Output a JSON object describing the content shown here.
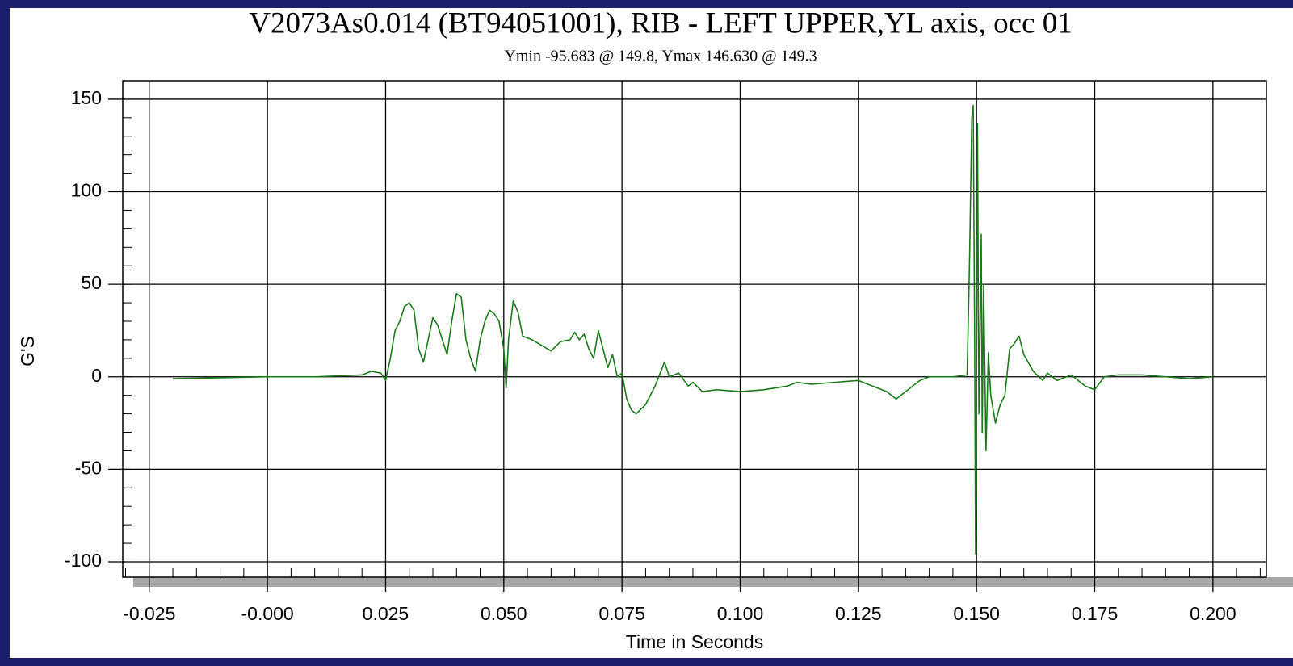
{
  "chart_data": {
    "type": "line",
    "title": "V2073As0.014 (BT94051001), RIB - LEFT UPPER,YL axis, occ 01",
    "subtitle": "Ymin -95.683 @ 149.8, Ymax 146.630 @ 149.3",
    "xlabel": "Time in Seconds",
    "ylabel": "G'S",
    "grid": true,
    "xlim": [
      -0.0306,
      0.2113
    ],
    "ylim": [
      -108.3,
      160
    ],
    "xticks": [
      {
        "value": -0.025,
        "label": "-0.025"
      },
      {
        "value": 0,
        "label": "-0.000"
      },
      0.025,
      {
        "value": 0.05,
        "label": "0.050"
      },
      0.075,
      {
        "value": 0.1,
        "label": "0.100"
      },
      0.125,
      {
        "value": 0.15,
        "label": "0.150"
      },
      0.175,
      {
        "value": 0.2,
        "label": "0.200"
      }
    ],
    "yticks": [
      150,
      100,
      50,
      0,
      -50,
      -100
    ],
    "x": [
      -0.02,
      -0.01,
      0,
      0.01,
      0.02,
      0.022,
      0.024,
      0.025,
      0.026,
      0.027,
      0.028,
      0.029,
      0.03,
      0.031,
      0.032,
      0.033,
      0.034,
      0.035,
      0.036,
      0.037,
      0.038,
      0.039,
      0.04,
      0.041,
      0.042,
      0.043,
      0.044,
      0.045,
      0.046,
      0.047,
      0.048,
      0.049,
      0.05,
      0.0505,
      0.051,
      0.052,
      0.053,
      0.054,
      0.056,
      0.058,
      0.06,
      0.062,
      0.064,
      0.065,
      0.066,
      0.067,
      0.068,
      0.069,
      0.07,
      0.071,
      0.072,
      0.073,
      0.074,
      0.075,
      0.076,
      0.077,
      0.078,
      0.08,
      0.082,
      0.084,
      0.085,
      0.087,
      0.089,
      0.09,
      0.092,
      0.095,
      0.1,
      0.105,
      0.11,
      0.112,
      0.115,
      0.12,
      0.125,
      0.128,
      0.131,
      0.133,
      0.135,
      0.138,
      0.14,
      0.145,
      0.148,
      0.1485,
      0.149,
      0.1493,
      0.1496,
      0.1498,
      0.15,
      0.1502,
      0.1505,
      0.151,
      0.1512,
      0.1515,
      0.152,
      0.1525,
      0.153,
      0.154,
      0.155,
      0.156,
      0.157,
      0.158,
      0.159,
      0.16,
      0.162,
      0.164,
      0.165,
      0.167,
      0.17,
      0.173,
      0.175,
      0.177,
      0.18,
      0.185,
      0.19,
      0.195,
      0.2
    ],
    "series": [
      {
        "name": "RIB - LEFT UPPER",
        "color": "#1a7a1a",
        "values": [
          -1,
          -0.5,
          0,
          0,
          1,
          3,
          2,
          -2,
          10,
          25,
          30,
          38,
          40,
          36,
          15,
          8,
          20,
          32,
          28,
          20,
          12,
          30,
          45,
          43,
          20,
          10,
          3,
          20,
          30,
          36,
          34,
          30,
          15,
          -6,
          20,
          41,
          35,
          22,
          20,
          17,
          14,
          19,
          20,
          24,
          20,
          23,
          15,
          10,
          25,
          15,
          5,
          12,
          0,
          2,
          -12,
          -18,
          -20,
          -15,
          -5,
          8,
          0,
          2,
          -5,
          -3,
          -8,
          -7,
          -8,
          -7,
          -5,
          -3,
          -4,
          -3,
          -2,
          -5,
          -8,
          -12,
          -8,
          -2,
          0,
          0,
          1,
          60,
          140,
          146.63,
          20,
          -95.683,
          0,
          137,
          -20,
          77,
          -30,
          50,
          -40,
          13,
          -10,
          -25,
          -15,
          -10,
          15,
          18,
          22,
          12,
          3,
          -2,
          2,
          -2,
          1,
          -5,
          -7,
          0,
          1,
          1,
          0,
          -1,
          0
        ]
      }
    ]
  }
}
